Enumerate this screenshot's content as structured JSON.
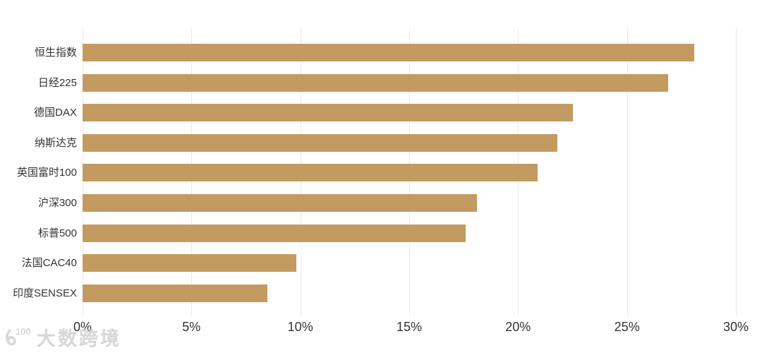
{
  "chart_data": {
    "type": "bar",
    "orientation": "horizontal",
    "title": "",
    "categories": [
      "恒生指数",
      "日经225",
      "德国DAX",
      "纳斯达克",
      "英国富时100",
      "沪深300",
      "标普500",
      "法国CAC40",
      "印度SENSEX"
    ],
    "values": [
      28.1,
      26.9,
      22.5,
      21.8,
      20.9,
      18.1,
      17.6,
      9.8,
      8.5
    ],
    "xlim": [
      0,
      30
    ],
    "x_ticks": [
      "0%",
      "5%",
      "10%",
      "15%",
      "20%",
      "25%",
      "30%"
    ],
    "xlabel": "",
    "ylabel": "",
    "grid": "vertical-only",
    "legend": "none",
    "bar_color": "#C39B60",
    "tick_label_color": "#333333",
    "gridline_color": "#e9e9e9"
  },
  "watermark": {
    "logo_text": "100",
    "text": "大数跨境"
  }
}
